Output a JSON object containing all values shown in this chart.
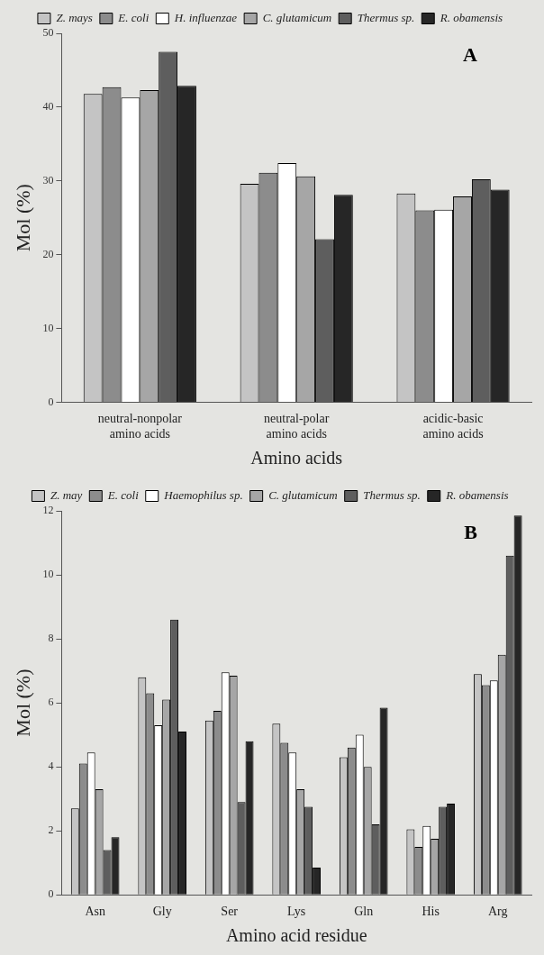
{
  "chart_data": [
    {
      "type": "bar",
      "xlabel": "Amino acids",
      "ylabel": "Mol (%)",
      "annotations": [
        "A"
      ],
      "categories": [
        "neutral-nonpolar amino acids",
        "neutral-polar amino acids",
        "acidic-basic amino acids"
      ],
      "ylim": [
        0,
        50
      ],
      "yticks": [
        0,
        10,
        20,
        30,
        40,
        50
      ],
      "grid": false,
      "legend": "top",
      "series": [
        {
          "name": "Z. mays",
          "color": "#c4c4c4",
          "values": [
            41.8,
            29.6,
            28.3
          ]
        },
        {
          "name": "E. coli",
          "color": "#8c8c8c",
          "values": [
            42.7,
            31.1,
            26.0
          ]
        },
        {
          "name": "H. influenzae",
          "color": "#ffffff",
          "values": [
            41.3,
            32.4,
            26.1
          ]
        },
        {
          "name": "C. glutamicum",
          "color": "#a6a6a6",
          "values": [
            42.3,
            30.6,
            27.9
          ]
        },
        {
          "name": "Thermus sp.",
          "color": "#5e5e5e",
          "values": [
            47.5,
            22.1,
            30.2
          ]
        },
        {
          "name": "R. obamensis",
          "color": "#262626",
          "values": [
            42.9,
            28.1,
            28.8
          ]
        }
      ]
    },
    {
      "type": "bar",
      "xlabel": "Amino acid residue",
      "ylabel": "Mol (%)",
      "annotations": [
        "B"
      ],
      "categories": [
        "Asn",
        "Gly",
        "Ser",
        "Lys",
        "Gln",
        "His",
        "Arg"
      ],
      "ylim": [
        0,
        12
      ],
      "yticks": [
        0,
        2,
        4,
        6,
        8,
        10,
        12
      ],
      "grid": false,
      "legend": "top",
      "series": [
        {
          "name": "Z. may",
          "color": "#c4c4c4",
          "values": [
            2.7,
            6.8,
            5.45,
            5.35,
            4.3,
            2.05,
            6.9
          ]
        },
        {
          "name": "E. coli",
          "color": "#8c8c8c",
          "values": [
            4.1,
            6.3,
            5.75,
            4.75,
            4.6,
            1.5,
            6.55
          ]
        },
        {
          "name": "Haemophilus sp.",
          "color": "#ffffff",
          "values": [
            4.45,
            5.3,
            6.95,
            4.45,
            5.0,
            2.15,
            6.7
          ]
        },
        {
          "name": "C. glutamicum",
          "color": "#a6a6a6",
          "values": [
            3.3,
            6.1,
            6.85,
            3.3,
            4.0,
            1.75,
            7.5
          ]
        },
        {
          "name": "Thermus sp.",
          "color": "#5e5e5e",
          "values": [
            1.4,
            8.6,
            2.9,
            2.75,
            2.2,
            2.75,
            10.6
          ]
        },
        {
          "name": "R. obamensis",
          "color": "#262626",
          "values": [
            1.8,
            5.1,
            4.8,
            0.85,
            5.85,
            2.85,
            11.85
          ]
        }
      ]
    }
  ]
}
